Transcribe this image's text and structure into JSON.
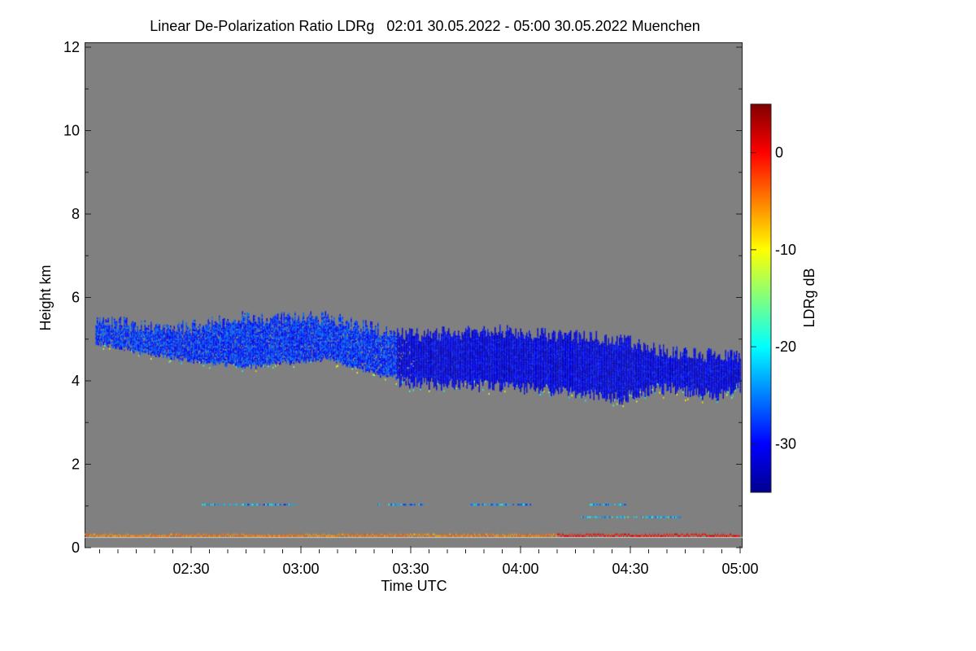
{
  "title": "Linear De-Polarization Ratio LDRg   02:01 30.05.2022 - 05:00 30.05.2022 Muenchen",
  "chart_data": {
    "type": "heatmap",
    "title": "Linear De-Polarization Ratio LDRg   02:01 30.05.2022 - 05:00 30.05.2022 Muenchen",
    "xlabel": "Time UTC",
    "ylabel": "Height km",
    "colorbar_label": "LDRg dB",
    "x_range_minutes_after_0201": [
      0,
      179
    ],
    "xlim": [
      "02:01",
      "05:00"
    ],
    "ylim": [
      0,
      12
    ],
    "x_ticks": [
      {
        "label": "02:30",
        "min": 29
      },
      {
        "label": "03:00",
        "min": 59
      },
      {
        "label": "03:30",
        "min": 89
      },
      {
        "label": "04:00",
        "min": 119
      },
      {
        "label": "04:30",
        "min": 149
      },
      {
        "label": "05:00",
        "min": 179
      }
    ],
    "y_ticks": [
      "0",
      "2",
      "4",
      "6",
      "8",
      "10",
      "12"
    ],
    "colorbar_range": [
      -35,
      5
    ],
    "colorbar_ticks": [
      "0",
      "-10",
      "-20",
      "-30"
    ],
    "colormap": "jet",
    "background_color": "#808080",
    "cloud_layer": {
      "ldr_db": -28,
      "time_min": [
        3,
        15,
        30,
        43,
        53,
        66,
        81,
        92,
        110,
        128,
        146,
        159,
        172,
        179
      ],
      "top_km": [
        5.5,
        5.3,
        5.3,
        5.5,
        5.5,
        5.5,
        5.2,
        5.1,
        5.2,
        5.1,
        5.0,
        4.7,
        4.6,
        4.6
      ],
      "base_km": [
        5.0,
        4.75,
        4.55,
        4.4,
        4.5,
        4.6,
        4.2,
        4.1,
        4.05,
        3.95,
        3.75,
        4.0,
        3.8,
        4.0
      ]
    },
    "near_ground_layer": {
      "height_km": 0.3,
      "ldr_db_before_0410": -5,
      "ldr_db_after_0410": 0
    },
    "aerosol_traces": [
      {
        "height_km": 1.05,
        "ldr_db": -24,
        "segments_min": [
          [
            32,
            58
          ],
          [
            80,
            93
          ],
          [
            105,
            122
          ],
          [
            138,
            148
          ]
        ]
      },
      {
        "height_km": 0.75,
        "ldr_db": -22,
        "segments_min": [
          [
            135,
            163
          ]
        ]
      }
    ]
  }
}
